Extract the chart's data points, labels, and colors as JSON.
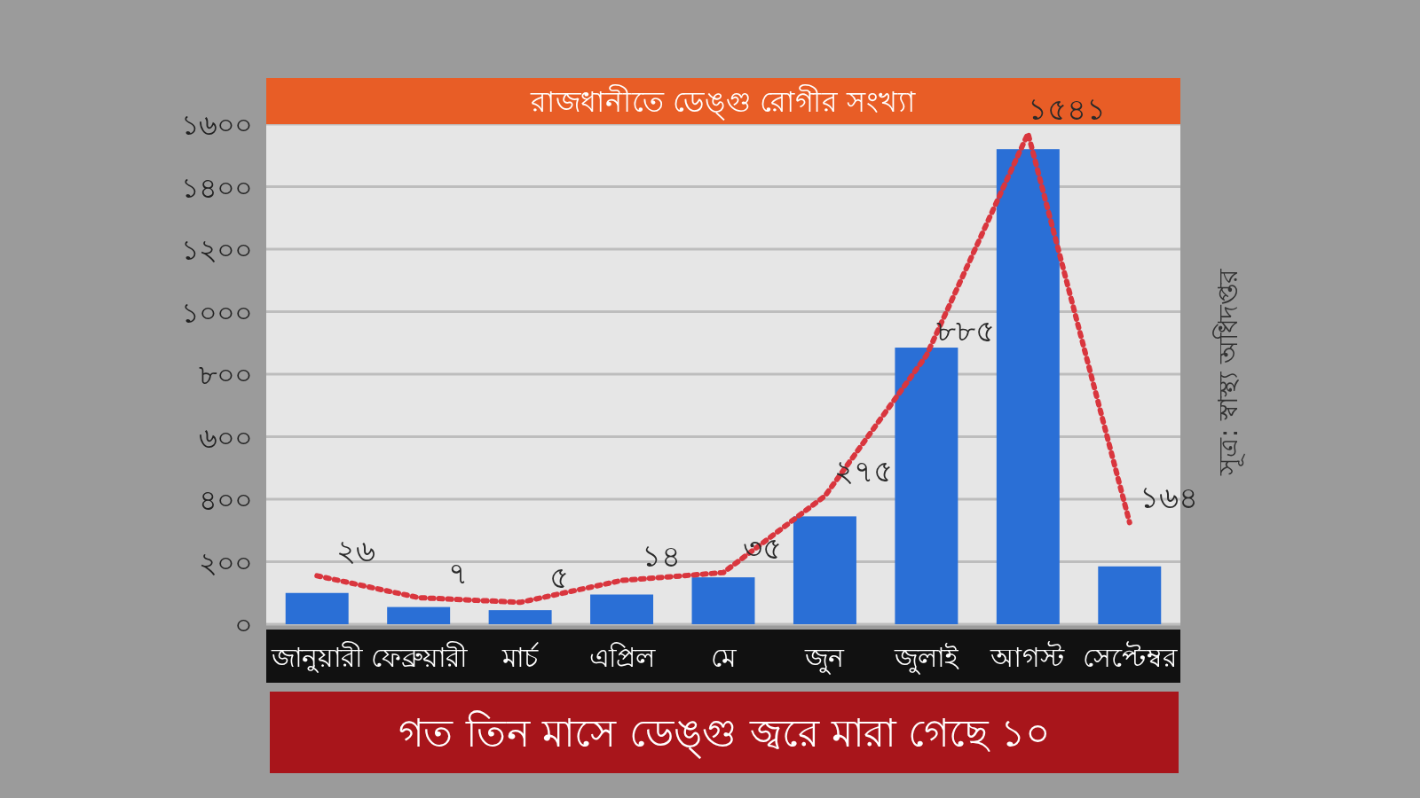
{
  "chart_data": {
    "type": "bar",
    "title": "রাজধানীতে ডেঙ্গু রোগীর সংখ্যা",
    "categories": [
      "জানুয়ারী",
      "ফেব্রুয়ারী",
      "মার্চ",
      "এপ্রিল",
      "মে",
      "জুন",
      "জুলাই",
      "আগস্ট",
      "সেপ্টেম্বর"
    ],
    "series": [
      {
        "color": "#2a6fd6",
        "values": [
          100,
          55,
          45,
          95,
          150,
          345,
          885,
          1520,
          185
        ]
      },
      {
        "type": "line",
        "color": "#d9363e",
        "line_style": "dotted",
        "values": [
          155,
          85,
          70,
          140,
          165,
          410,
          860,
          1570,
          325
        ]
      }
    ],
    "ylim": [
      0,
      1600
    ],
    "yticks": [
      {
        "value": 0,
        "label": "০"
      },
      {
        "value": 200,
        "label": "২০০"
      },
      {
        "value": 400,
        "label": "৪০০"
      },
      {
        "value": 600,
        "label": "৬০০"
      },
      {
        "value": 800,
        "label": "৮০০"
      },
      {
        "value": 1000,
        "label": "১০০০"
      },
      {
        "value": 1200,
        "label": "১২০০"
      },
      {
        "value": 1400,
        "label": "১৪০০"
      },
      {
        "value": 1600,
        "label": "১৬০০"
      }
    ],
    "grid": "y",
    "annotations": [
      "সূত্র: স্বাস্থ্য অধিদপ্তর",
      "গত তিন মাসে ডেঙ্গু জ্বরে মারা গেছে ১০",
      {
        "text": "২৬",
        "x": "জানুয়ারী",
        "y": 155
      },
      {
        "text": "৭",
        "x": "ফেব্রুয়ারী",
        "y": 85
      },
      {
        "text": "৫",
        "x": "মার্চ",
        "y": 70
      },
      {
        "text": "১৪",
        "x": "এপ্রিল",
        "y": 140
      },
      {
        "text": "৩৫",
        "x": "মে",
        "y": 165
      },
      {
        "text": "২৭৫",
        "x": "জুন",
        "y": 410
      },
      {
        "text": "৮৮৫",
        "x": "জুলাই",
        "y": 860
      },
      {
        "text": "১৫৪১",
        "x": "আগস্ট",
        "y": 1570
      },
      {
        "text": "১৬৪",
        "x": "সেপ্টেম্বর",
        "y": 325
      }
    ]
  }
}
